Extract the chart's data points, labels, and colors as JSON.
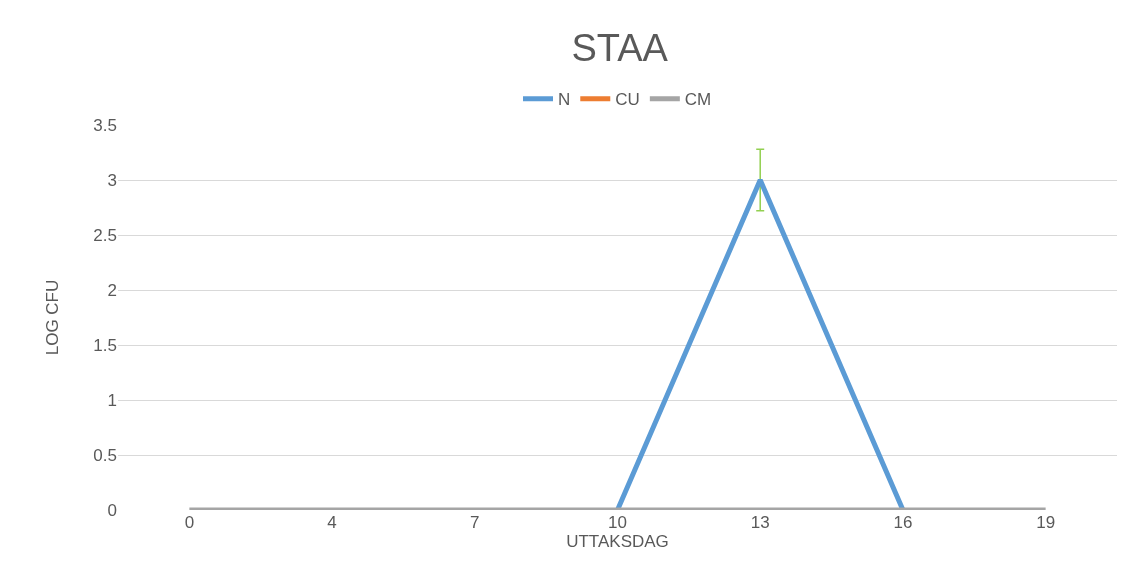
{
  "chart_data": {
    "type": "line",
    "title": "STAA",
    "xlabel": "UTTAKSDAG",
    "ylabel": "LOG CFU",
    "categories": [
      "0",
      "4",
      "7",
      "10",
      "13",
      "16",
      "19"
    ],
    "series": [
      {
        "name": "N",
        "color": "#5b9bd5",
        "values": [
          null,
          null,
          null,
          0,
          3,
          0,
          null
        ],
        "errors": [
          null,
          null,
          null,
          null,
          0.28,
          null,
          null
        ]
      },
      {
        "name": "CU",
        "color": "#ed7d31",
        "values": [
          null,
          null,
          null,
          null,
          null,
          null,
          null
        ]
      },
      {
        "name": "CM",
        "color": "#a5a5a5",
        "values": [
          0,
          0,
          0,
          0,
          0,
          0,
          0
        ]
      }
    ],
    "ylim": [
      0,
      3.5
    ],
    "yticks": [
      0,
      0.5,
      1,
      1.5,
      2,
      2.5,
      3,
      3.5
    ],
    "grid": "y",
    "legend": "top",
    "marker": "none",
    "line_style": "solid"
  }
}
